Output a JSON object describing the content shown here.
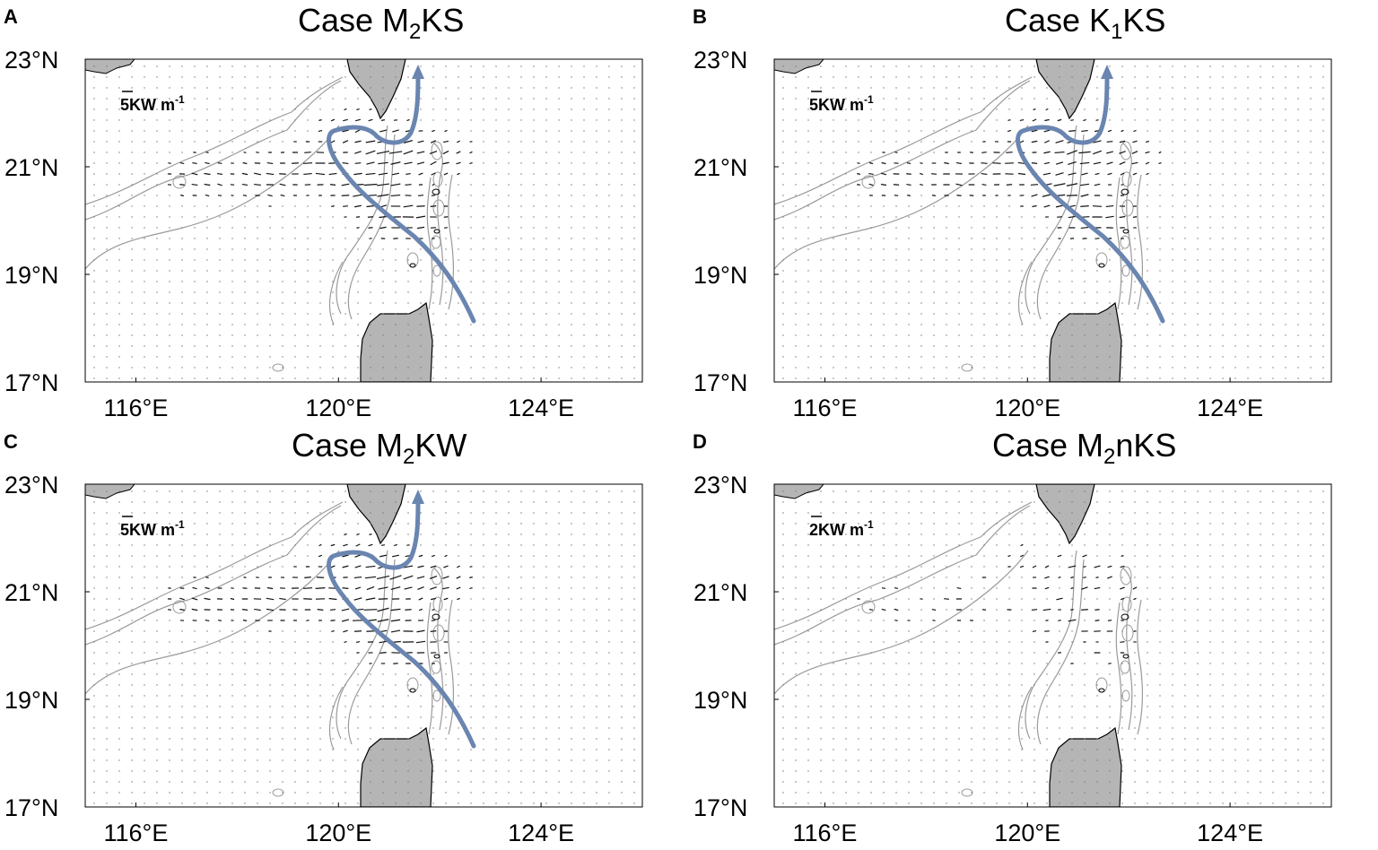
{
  "panels": [
    {
      "letter": "A",
      "title_base": "Case M",
      "title_sub": "2",
      "title_rest": "KS",
      "scale": "5KW m",
      "scale_exp": "-1",
      "flux_strength": 1.0,
      "has_current": true
    },
    {
      "letter": "B",
      "title_base": "Case K",
      "title_sub": "1",
      "title_rest": "KS",
      "scale": "5KW m",
      "scale_exp": "-1",
      "flux_strength": 0.9,
      "has_current": true
    },
    {
      "letter": "C",
      "title_base": "Case M",
      "title_sub": "2",
      "title_rest": "KW",
      "scale": "5KW m",
      "scale_exp": "-1",
      "flux_strength": 1.0,
      "has_current": true
    },
    {
      "letter": "D",
      "title_base": "Case M",
      "title_sub": "2",
      "title_rest": "nKS",
      "scale": "2KW m",
      "scale_exp": "-1",
      "flux_strength": 0.6,
      "has_current": false
    }
  ],
  "lat_labels": [
    "23°N",
    "21°N",
    "19°N",
    "17°N"
  ],
  "lon_labels": [
    "116°E",
    "120°E",
    "124°E"
  ],
  "colors": {
    "current_arrow": "#6a85b0",
    "land": "#b5b5b5",
    "bathymetry": "#9a9a9a",
    "flux_vector": "#111111"
  }
}
